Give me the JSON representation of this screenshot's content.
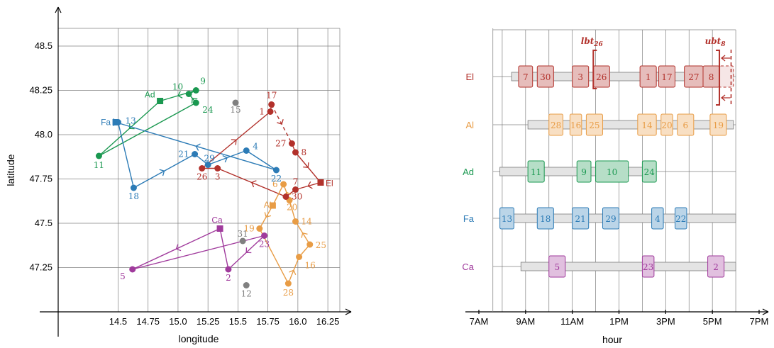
{
  "colors": {
    "Ad": "#1a9850",
    "Fa": "#2c7bb6",
    "El": "#b2312b",
    "Al": "#e89c45",
    "Ca": "#a03a9c",
    "unassigned": "#808080"
  },
  "chart_data": [
    {
      "type": "scatter",
      "xlabel": "longitude",
      "ylabel": "latitude",
      "xlim": [
        14.0,
        16.35
      ],
      "ylim": [
        47.0,
        48.6
      ],
      "xticks": [
        "14.5",
        "14.75",
        "15.0",
        "15.25",
        "15.5",
        "15.75",
        "16.0",
        "16.25"
      ],
      "yticks": [
        "47.25",
        "47.5",
        "47.75",
        "48.0",
        "48.25",
        "48.5"
      ],
      "depots": [
        {
          "name": "Ad",
          "x": 14.85,
          "y": 48.19
        },
        {
          "name": "Fa",
          "x": 14.48,
          "y": 48.07
        },
        {
          "name": "El",
          "x": 16.19,
          "y": 47.73
        },
        {
          "name": "Al",
          "x": 15.79,
          "y": 47.6
        },
        {
          "name": "Ca",
          "x": 15.35,
          "y": 47.47
        }
      ],
      "customers": [
        {
          "id": "1",
          "x": 15.77,
          "y": 48.13,
          "route": "El"
        },
        {
          "id": "2",
          "x": 15.42,
          "y": 47.24,
          "route": "Ca"
        },
        {
          "id": "3",
          "x": 15.33,
          "y": 47.81,
          "route": "El"
        },
        {
          "id": "4",
          "x": 15.57,
          "y": 47.91,
          "route": "Fa"
        },
        {
          "id": "5",
          "x": 14.62,
          "y": 47.24,
          "route": "Ca"
        },
        {
          "id": "6",
          "x": 15.88,
          "y": 47.72,
          "route": "Al"
        },
        {
          "id": "7",
          "x": 15.98,
          "y": 47.69,
          "route": "El"
        },
        {
          "id": "8",
          "x": 15.98,
          "y": 47.9,
          "route": "El"
        },
        {
          "id": "9",
          "x": 15.15,
          "y": 48.25,
          "route": "Ad"
        },
        {
          "id": "10",
          "x": 15.09,
          "y": 48.23,
          "route": "Ad"
        },
        {
          "id": "11",
          "x": 14.34,
          "y": 47.88,
          "route": "Ad"
        },
        {
          "id": "12",
          "x": 15.57,
          "y": 47.15,
          "route": "unassigned"
        },
        {
          "id": "13",
          "x": 14.5,
          "y": 48.07,
          "route": "Fa"
        },
        {
          "id": "14",
          "x": 15.98,
          "y": 47.51,
          "route": "Al"
        },
        {
          "id": "15",
          "x": 15.48,
          "y": 48.18,
          "route": "unassigned"
        },
        {
          "id": "16",
          "x": 16.01,
          "y": 47.31,
          "route": "Al"
        },
        {
          "id": "17",
          "x": 15.78,
          "y": 48.17,
          "route": "El"
        },
        {
          "id": "18",
          "x": 14.63,
          "y": 47.7,
          "route": "Fa"
        },
        {
          "id": "19",
          "x": 15.68,
          "y": 47.47,
          "route": "Al"
        },
        {
          "id": "20",
          "x": 15.93,
          "y": 47.63,
          "route": "Al"
        },
        {
          "id": "21",
          "x": 15.14,
          "y": 47.89,
          "route": "Fa"
        },
        {
          "id": "22",
          "x": 15.82,
          "y": 47.8,
          "route": "Fa"
        },
        {
          "id": "23",
          "x": 15.72,
          "y": 47.43,
          "route": "Ca"
        },
        {
          "id": "24",
          "x": 15.15,
          "y": 48.18,
          "route": "Ad"
        },
        {
          "id": "25",
          "x": 16.1,
          "y": 47.38,
          "route": "Al"
        },
        {
          "id": "26",
          "x": 15.2,
          "y": 47.81,
          "route": "El"
        },
        {
          "id": "27",
          "x": 15.95,
          "y": 47.95,
          "route": "El"
        },
        {
          "id": "28",
          "x": 15.92,
          "y": 47.16,
          "route": "Al"
        },
        {
          "id": "29",
          "x": 15.25,
          "y": 47.83,
          "route": "Fa"
        },
        {
          "id": "30",
          "x": 15.9,
          "y": 47.65,
          "route": "El"
        },
        {
          "id": "31",
          "x": 15.54,
          "y": 47.4,
          "route": "unassigned"
        }
      ],
      "routes": [
        {
          "name": "Ad",
          "stops": [
            "Ad",
            "11",
            "24",
            "10",
            "9",
            "Ad"
          ]
        },
        {
          "name": "Fa",
          "stops": [
            "Fa",
            "13",
            "18",
            "21",
            "29",
            "4",
            "22",
            "Fa"
          ]
        },
        {
          "name": "El",
          "stops": [
            "El",
            "7",
            "30",
            "3",
            "26",
            "1",
            "17",
            "27",
            "8",
            "El"
          ]
        },
        {
          "name": "Al",
          "stops": [
            "Al",
            "19",
            "28",
            "16",
            "25",
            "14",
            "20",
            "6",
            "Al"
          ]
        },
        {
          "name": "Ca",
          "stops": [
            "Ca",
            "5",
            "23",
            "2",
            "Ca"
          ]
        }
      ]
    },
    {
      "type": "gantt",
      "xlabel": "hour",
      "xticks": [
        "7AM",
        "9AM",
        "11AM",
        "1PM",
        "3PM",
        "5PM",
        "7PM"
      ],
      "xlim": [
        7,
        19
      ],
      "rows": [
        {
          "name": "El",
          "window": [
            8.4,
            17.9
          ],
          "visits": [
            {
              "id": "7",
              "s": 8.7,
              "e": 9.3
            },
            {
              "id": "30",
              "s": 9.5,
              "e": 10.2
            },
            {
              "id": "3",
              "s": 11.0,
              "e": 11.7
            },
            {
              "id": "26",
              "s": 11.9,
              "e": 12.6
            },
            {
              "id": "1",
              "s": 13.9,
              "e": 14.6
            },
            {
              "id": "17",
              "s": 14.7,
              "e": 15.4
            },
            {
              "id": "27",
              "s": 15.8,
              "e": 16.6
            },
            {
              "id": "8",
              "s": 16.6,
              "e": 17.3
            }
          ],
          "ghost": {
            "id": "",
            "s": 17.3,
            "e": 17.9
          }
        },
        {
          "name": "Al",
          "window": [
            9.1,
            17.9
          ],
          "visits": [
            {
              "id": "28",
              "s": 10.0,
              "e": 10.6
            },
            {
              "id": "16",
              "s": 10.9,
              "e": 11.4
            },
            {
              "id": "25",
              "s": 11.6,
              "e": 12.3
            },
            {
              "id": "14",
              "s": 13.8,
              "e": 14.6
            },
            {
              "id": "20",
              "s": 14.8,
              "e": 15.3
            },
            {
              "id": "6",
              "s": 15.5,
              "e": 16.2
            },
            {
              "id": "19",
              "s": 16.9,
              "e": 17.6
            }
          ]
        },
        {
          "name": "Ad",
          "window": [
            7.9,
            14.1
          ],
          "visits": [
            {
              "id": "11",
              "s": 9.1,
              "e": 9.8
            },
            {
              "id": "9",
              "s": 11.2,
              "e": 11.8
            },
            {
              "id": "10",
              "s": 12.0,
              "e": 13.4
            },
            {
              "id": "24",
              "s": 14.0,
              "e": 14.6
            }
          ]
        },
        {
          "name": "Fa",
          "window": [
            8.3,
            18.0
          ],
          "visits": [
            {
              "id": "13",
              "s": 7.9,
              "e": 8.5
            },
            {
              "id": "18",
              "s": 9.5,
              "e": 10.2
            },
            {
              "id": "21",
              "s": 11.0,
              "e": 11.7
            },
            {
              "id": "29",
              "s": 12.3,
              "e": 13.0
            },
            {
              "id": "4",
              "s": 14.4,
              "e": 14.9
            },
            {
              "id": "22",
              "s": 15.4,
              "e": 15.9
            }
          ]
        },
        {
          "name": "Ca",
          "window": [
            8.8,
            18.0
          ],
          "visits": [
            {
              "id": "5",
              "s": 10.0,
              "e": 10.7
            },
            {
              "id": "23",
              "s": 14.0,
              "e": 14.5
            },
            {
              "id": "2",
              "s": 16.8,
              "e": 17.5
            }
          ]
        }
      ],
      "bounds": [
        {
          "label": "lbt26",
          "main": "lbt",
          "sub": "26",
          "row": "El",
          "hour": 11.9,
          "side": "left"
        },
        {
          "label": "ubt8",
          "main": "ubt",
          "sub": "8",
          "row": "El",
          "hour": 17.3,
          "side": "right"
        }
      ]
    }
  ]
}
